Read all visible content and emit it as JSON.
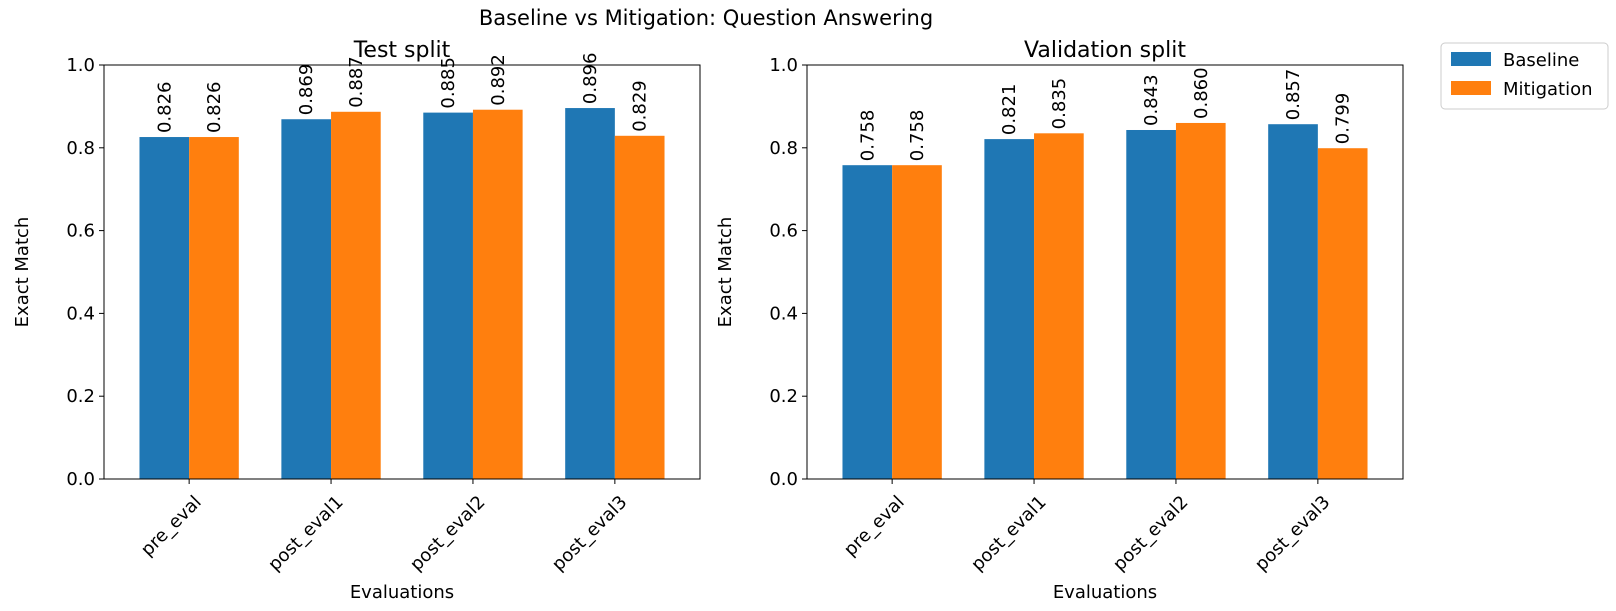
{
  "figure": {
    "suptitle": "Baseline vs Mitigation: Question Answering"
  },
  "legend": {
    "placement": "upper-right-outside",
    "items": [
      {
        "label": "Baseline",
        "color": "#1f77b4"
      },
      {
        "label": "Mitigation",
        "color": "#ff7f0e"
      }
    ]
  },
  "chart_data": [
    {
      "type": "bar",
      "title": "Test split",
      "xlabel": "Evaluations",
      "ylabel": "Exact Match",
      "ylim": [
        0,
        1.0
      ],
      "yticks": [
        "0.0",
        "0.2",
        "0.4",
        "0.6",
        "0.8",
        "1.0"
      ],
      "grid": false,
      "categories": [
        "pre_eval",
        "post_eval1",
        "post_eval2",
        "post_eval3"
      ],
      "series": [
        {
          "name": "Baseline",
          "color": "#1f77b4",
          "values": [
            0.826,
            0.869,
            0.885,
            0.896
          ],
          "labels": [
            "0.826",
            "0.869",
            "0.885",
            "0.896"
          ]
        },
        {
          "name": "Mitigation",
          "color": "#ff7f0e",
          "values": [
            0.826,
            0.887,
            0.892,
            0.829
          ],
          "labels": [
            "0.826",
            "0.887",
            "0.892",
            "0.829"
          ]
        }
      ]
    },
    {
      "type": "bar",
      "title": "Validation split",
      "xlabel": "Evaluations",
      "ylabel": "Exact Match",
      "ylim": [
        0,
        1.0
      ],
      "yticks": [
        "0.0",
        "0.2",
        "0.4",
        "0.6",
        "0.8",
        "1.0"
      ],
      "grid": false,
      "categories": [
        "pre_eval",
        "post_eval1",
        "post_eval2",
        "post_eval3"
      ],
      "series": [
        {
          "name": "Baseline",
          "color": "#1f77b4",
          "values": [
            0.758,
            0.821,
            0.843,
            0.857
          ],
          "labels": [
            "0.758",
            "0.821",
            "0.843",
            "0.857"
          ]
        },
        {
          "name": "Mitigation",
          "color": "#ff7f0e",
          "values": [
            0.758,
            0.835,
            0.86,
            0.799
          ],
          "labels": [
            "0.758",
            "0.835",
            "0.860",
            "0.799"
          ]
        }
      ]
    }
  ]
}
